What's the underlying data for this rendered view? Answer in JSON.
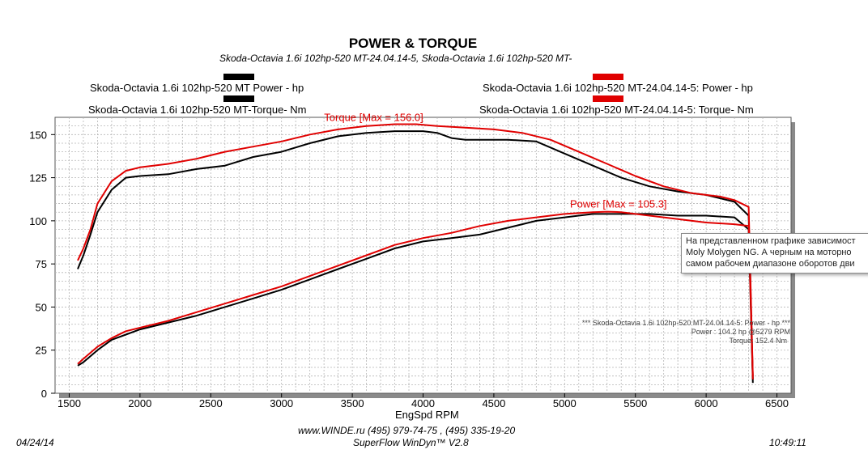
{
  "chart_data": {
    "type": "line",
    "title": "POWER & TORQUE",
    "subtitle": "Skoda-Octavia 1.6i  102hp-520 MT-24.04.14-5, Skoda-Octavia 1.6i  102hp-520 MT-",
    "xlabel": "EngSpd  RPM",
    "ylabel": "",
    "xlim": [
      1400,
      6600
    ],
    "ylim": [
      0,
      160
    ],
    "x_ticks": [
      1500,
      2000,
      2500,
      3000,
      3500,
      4000,
      4500,
      5000,
      5500,
      6000,
      6500
    ],
    "y_ticks": [
      0,
      25,
      50,
      75,
      100,
      125,
      150
    ],
    "grid": true,
    "series": [
      {
        "name": "Skoda-Octavia 1.6i  102hp-520 MT Power -  hp",
        "color": "#000000",
        "x": [
          1560,
          1600,
          1700,
          1800,
          1900,
          2000,
          2200,
          2400,
          2600,
          2800,
          3000,
          3200,
          3400,
          3600,
          3800,
          4000,
          4200,
          4400,
          4600,
          4800,
          5000,
          5200,
          5400,
          5600,
          5800,
          6000,
          6200,
          6300,
          6330
        ],
        "y": [
          16,
          18,
          25,
          31,
          34,
          37,
          41,
          45,
          50,
          55,
          60,
          66,
          72,
          78,
          84,
          88,
          90,
          92,
          96,
          100,
          102,
          104,
          104,
          104,
          103,
          103,
          102,
          95,
          6
        ]
      },
      {
        "name": "Skoda-Octavia 1.6i  102hp-520 MT-Torque-  Nm",
        "color": "#000000",
        "x": [
          1560,
          1600,
          1650,
          1700,
          1800,
          1900,
          2000,
          2200,
          2400,
          2600,
          2800,
          3000,
          3200,
          3400,
          3600,
          3800,
          4000,
          4100,
          4200,
          4300,
          4400,
          4600,
          4800,
          5000,
          5200,
          5400,
          5600,
          5800,
          6000,
          6200,
          6300,
          6330
        ],
        "y": [
          72,
          80,
          92,
          105,
          118,
          125,
          126,
          127,
          130,
          132,
          137,
          140,
          145,
          149,
          151,
          152,
          152,
          151,
          148,
          147,
          147,
          147,
          146,
          139,
          132,
          125,
          120,
          117,
          115,
          111,
          103,
          8
        ]
      },
      {
        "name": "Skoda-Octavia 1.6i  102hp-520 MT-24.04.14-5: Power -  hp",
        "color": "#e00000",
        "x": [
          1560,
          1600,
          1700,
          1800,
          1900,
          2000,
          2200,
          2400,
          2600,
          2800,
          3000,
          3200,
          3400,
          3600,
          3800,
          4000,
          4200,
          4400,
          4600,
          4800,
          5000,
          5200,
          5300,
          5400,
          5600,
          5800,
          6000,
          6200,
          6300,
          6330
        ],
        "y": [
          17,
          20,
          27,
          32,
          36,
          38,
          42,
          47,
          52,
          57,
          62,
          68,
          74,
          80,
          86,
          90,
          93,
          97,
          100,
          102,
          104,
          105,
          105.3,
          105,
          103,
          101,
          99,
          98,
          97,
          8
        ]
      },
      {
        "name": "Skoda-Octavia 1.6i  102hp-520 MT-24.04.14-5: Torque-  Nm",
        "color": "#e00000",
        "x": [
          1560,
          1600,
          1650,
          1700,
          1800,
          1900,
          2000,
          2200,
          2400,
          2600,
          2800,
          3000,
          3200,
          3400,
          3600,
          3800,
          3950,
          4100,
          4300,
          4500,
          4700,
          4900,
          5100,
          5300,
          5500,
          5700,
          5900,
          6100,
          6200,
          6300,
          6330
        ],
        "y": [
          77,
          84,
          95,
          110,
          123,
          129,
          131,
          133,
          136,
          140,
          143,
          146,
          150,
          153,
          155,
          156,
          156,
          155,
          154,
          153,
          151,
          147,
          140,
          133,
          126,
          120,
          116,
          114,
          112,
          108,
          10
        ]
      }
    ],
    "annotations": [
      {
        "text": "Torque [Max = 156.0]",
        "color": "#e00000"
      },
      {
        "text": "Power  [Max = 105.3]",
        "color": "#e00000"
      }
    ],
    "info_box": [
      "*** Skoda-Octavia 1.6i  102hp-520 MT-24.04.14-5: Power -  hp  ***",
      "Power :  104.2 hp   @5279 RPM",
      "Torque:  152.4 Nm"
    ]
  },
  "legend": {
    "left_power": "Skoda-Octavia 1.6i  102hp-520 MT Power -  hp",
    "left_torque": "Skoda-Octavia 1.6i  102hp-520 MT-Torque-  Nm",
    "right_power": "Skoda-Octavia 1.6i  102hp-520 MT-24.04.14-5: Power -  hp",
    "right_torque": "Skoda-Octavia 1.6i  102hp-520 MT-24.04.14-5: Torque-  Nm",
    "black": "#000000",
    "red": "#e00000"
  },
  "footer": {
    "date": "04/24/14",
    "website": "www.WINDE.ru  (495) 979-74-75 , (495) 335-19-20",
    "software": "SuperFlow WinDyn™ V2.8",
    "time": "10:49:11"
  },
  "tooltip": {
    "lines": [
      "На представленном графике зависимост",
      "Moly Molygen NG. А черным на моторно",
      "самом рабочем диапазоне оборотов дви"
    ]
  }
}
